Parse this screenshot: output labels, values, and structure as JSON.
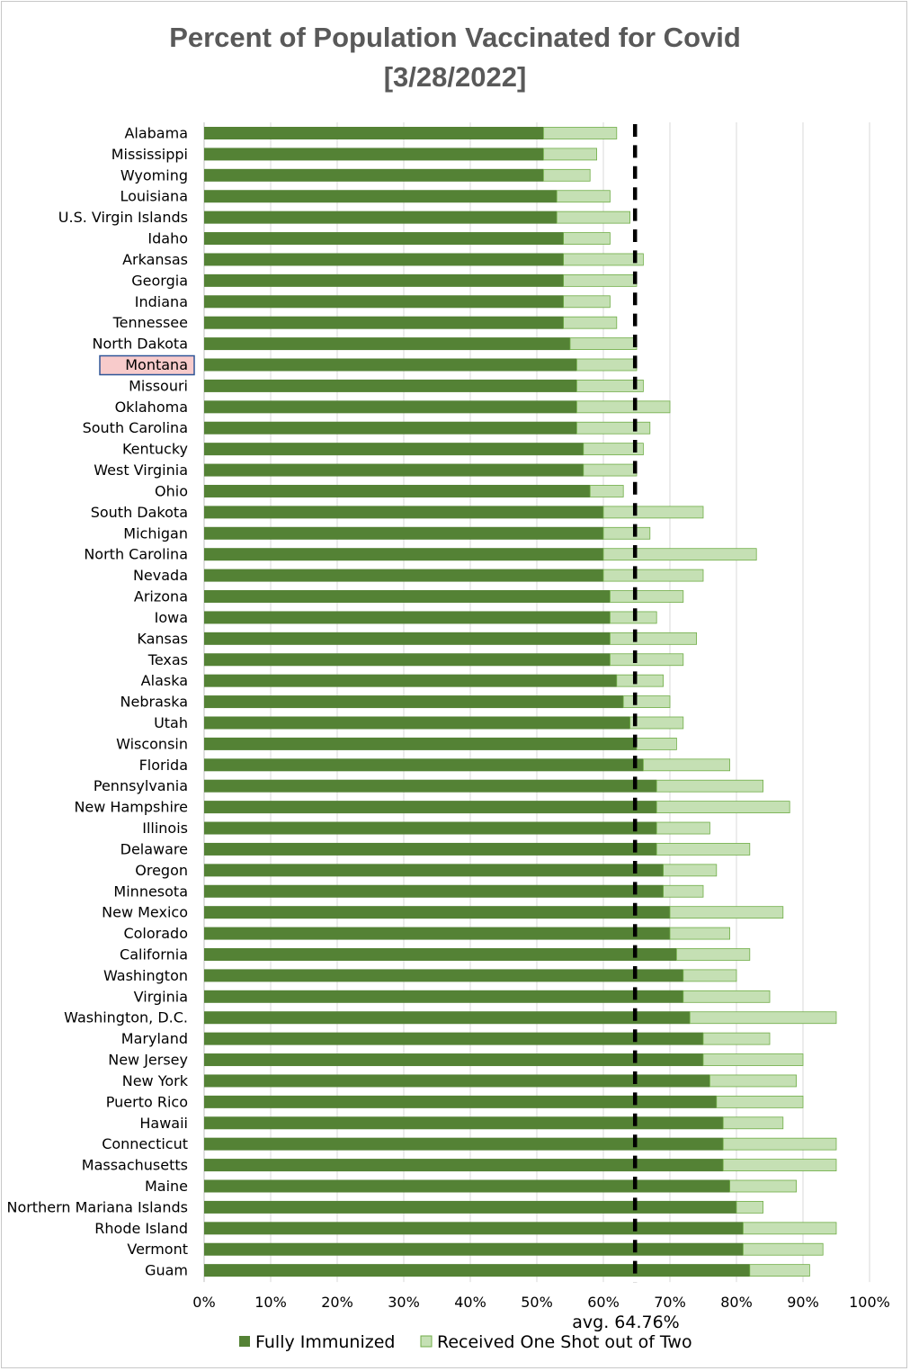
{
  "chart_data": {
    "type": "bar",
    "orientation": "horizontal",
    "stacked": true,
    "title_lines": [
      "Percent of Population Vaccinated for Covid",
      "[3/28/2022]"
    ],
    "xlim": [
      0,
      100
    ],
    "x_ticks": [
      "0%",
      "10%",
      "20%",
      "30%",
      "40%",
      "50%",
      "60%",
      "70%",
      "80%",
      "90%",
      "100%"
    ],
    "grid": "vertical",
    "highlighted_category": "Montana",
    "colors": {
      "full": "#548235",
      "partial": "#c5e0b4",
      "partial_border": "#70ad47",
      "avg_line": "#000000",
      "highlight_fill": "#f8cbcb",
      "highlight_border": "#2f5597"
    },
    "categories": [
      "Alabama",
      "Mississippi",
      "Wyoming",
      "Louisiana",
      "U.S. Virgin Islands",
      "Idaho",
      "Arkansas",
      "Georgia",
      "Indiana",
      "Tennessee",
      "North Dakota",
      "Montana",
      "Missouri",
      "Oklahoma",
      "South Carolina",
      "Kentucky",
      "West Virginia",
      "Ohio",
      "South Dakota",
      "Michigan",
      "North Carolina",
      "Nevada",
      "Arizona",
      "Iowa",
      "Kansas",
      "Texas",
      "Alaska",
      "Nebraska",
      "Utah",
      "Wisconsin",
      "Florida",
      "Pennsylvania",
      "New Hampshire",
      "Illinois",
      "Delaware",
      "Oregon",
      "Minnesota",
      "New Mexico",
      "Colorado",
      "California",
      "Washington",
      "Virginia",
      "Washington, D.C.",
      "Maryland",
      "New Jersey",
      "New York",
      "Puerto Rico",
      "Hawaii",
      "Connecticut",
      "Massachusetts",
      "Maine",
      "Northern Mariana Islands",
      "Rhode Island",
      "Vermont",
      "Guam"
    ],
    "series": [
      {
        "name": "Fully Immunized",
        "values": [
          51,
          51,
          51,
          53,
          53,
          54,
          54,
          54,
          54,
          54,
          55,
          56,
          56,
          56,
          56,
          57,
          57,
          58,
          60,
          60,
          60,
          60,
          61,
          61,
          61,
          61,
          62,
          63,
          64,
          65,
          66,
          68,
          68,
          68,
          68,
          69,
          69,
          70,
          70,
          71,
          72,
          72,
          73,
          75,
          75,
          76,
          77,
          78,
          78,
          78,
          79,
          80,
          81,
          81,
          82
        ]
      },
      {
        "name": "Received One Shot out of Two",
        "values": [
          11,
          8,
          7,
          8,
          11,
          7,
          12,
          11,
          7,
          8,
          10,
          9,
          10,
          14,
          11,
          9,
          8,
          5,
          15,
          7,
          23,
          15,
          11,
          7,
          13,
          11,
          7,
          7,
          8,
          6,
          13,
          16,
          20,
          8,
          14,
          8,
          6,
          17,
          9,
          11,
          8,
          13,
          22,
          10,
          15,
          13,
          13,
          9,
          17,
          17,
          10,
          4,
          14,
          12,
          9
        ]
      }
    ],
    "average": {
      "value": 64.76,
      "label": "avg. 64.76%"
    }
  }
}
